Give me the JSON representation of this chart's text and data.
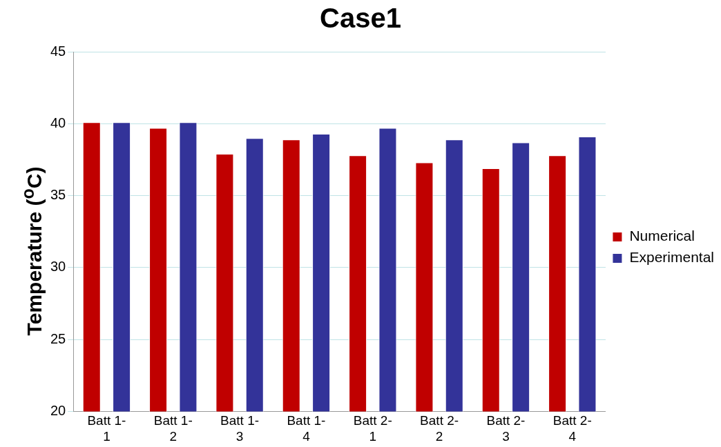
{
  "chart_data": {
    "type": "bar",
    "title": "Case1",
    "ylabel": "Temperature ($^{o}$C)",
    "categories": [
      "Batt 1-1",
      "Batt 1-2",
      "Batt 1-3",
      "Batt 1-4",
      "Batt 2-1",
      "Batt 2-2",
      "Batt 2-3",
      "Batt 2-4"
    ],
    "series": [
      {
        "name": "Numerical",
        "color": "#c00000",
        "values": [
          40.1,
          39.7,
          37.9,
          38.9,
          37.8,
          37.3,
          36.9,
          37.8
        ]
      },
      {
        "name": "Experimental",
        "color": "#333399",
        "values": [
          40.1,
          40.1,
          39.0,
          39.3,
          39.7,
          38.9,
          38.7,
          39.1
        ]
      }
    ],
    "ylim": [
      20,
      45
    ],
    "yticks": [
      20,
      25,
      30,
      35,
      40,
      45
    ],
    "grid": "y",
    "legend": "right"
  }
}
